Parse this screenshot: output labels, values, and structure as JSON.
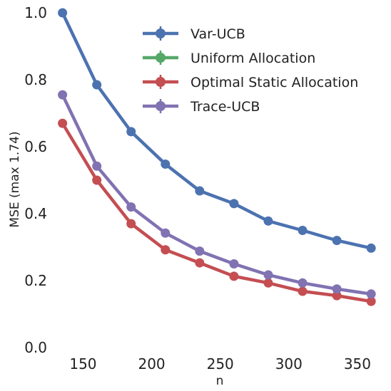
{
  "chart_data": {
    "type": "line",
    "title": "",
    "xlabel": "n",
    "ylabel": "MSE (max 1.74)",
    "xlim": [
      130,
      362
    ],
    "ylim": [
      0.0,
      1.0
    ],
    "xticks": [
      "150",
      "200",
      "250",
      "300",
      "350"
    ],
    "yticks": [
      "0.0",
      "0.2",
      "0.4",
      "0.6",
      "0.8",
      "1.0"
    ],
    "grid": false,
    "legend": "top-right",
    "x": [
      135,
      160,
      185,
      210,
      235,
      260,
      285,
      310,
      335,
      360
    ],
    "series": [
      {
        "name": "Var-UCB",
        "color": "#4c72b0",
        "values": [
          1.0,
          0.785,
          0.645,
          0.548,
          0.468,
          0.43,
          0.378,
          0.35,
          0.32,
          0.297
        ]
      },
      {
        "name": "Uniform Allocation",
        "color": "#55a868",
        "values": [
          null,
          null,
          null,
          null,
          null,
          null,
          null,
          null,
          null,
          null
        ]
      },
      {
        "name": "Optimal Static Allocation",
        "color": "#c44e52",
        "values": [
          0.67,
          0.5,
          0.37,
          0.292,
          0.253,
          0.213,
          0.193,
          0.168,
          0.155,
          0.138
        ]
      },
      {
        "name": "Trace-UCB",
        "color": "#8172b2",
        "values": [
          0.755,
          0.542,
          0.42,
          0.342,
          0.288,
          0.25,
          0.217,
          0.193,
          0.175,
          0.16
        ]
      }
    ]
  }
}
